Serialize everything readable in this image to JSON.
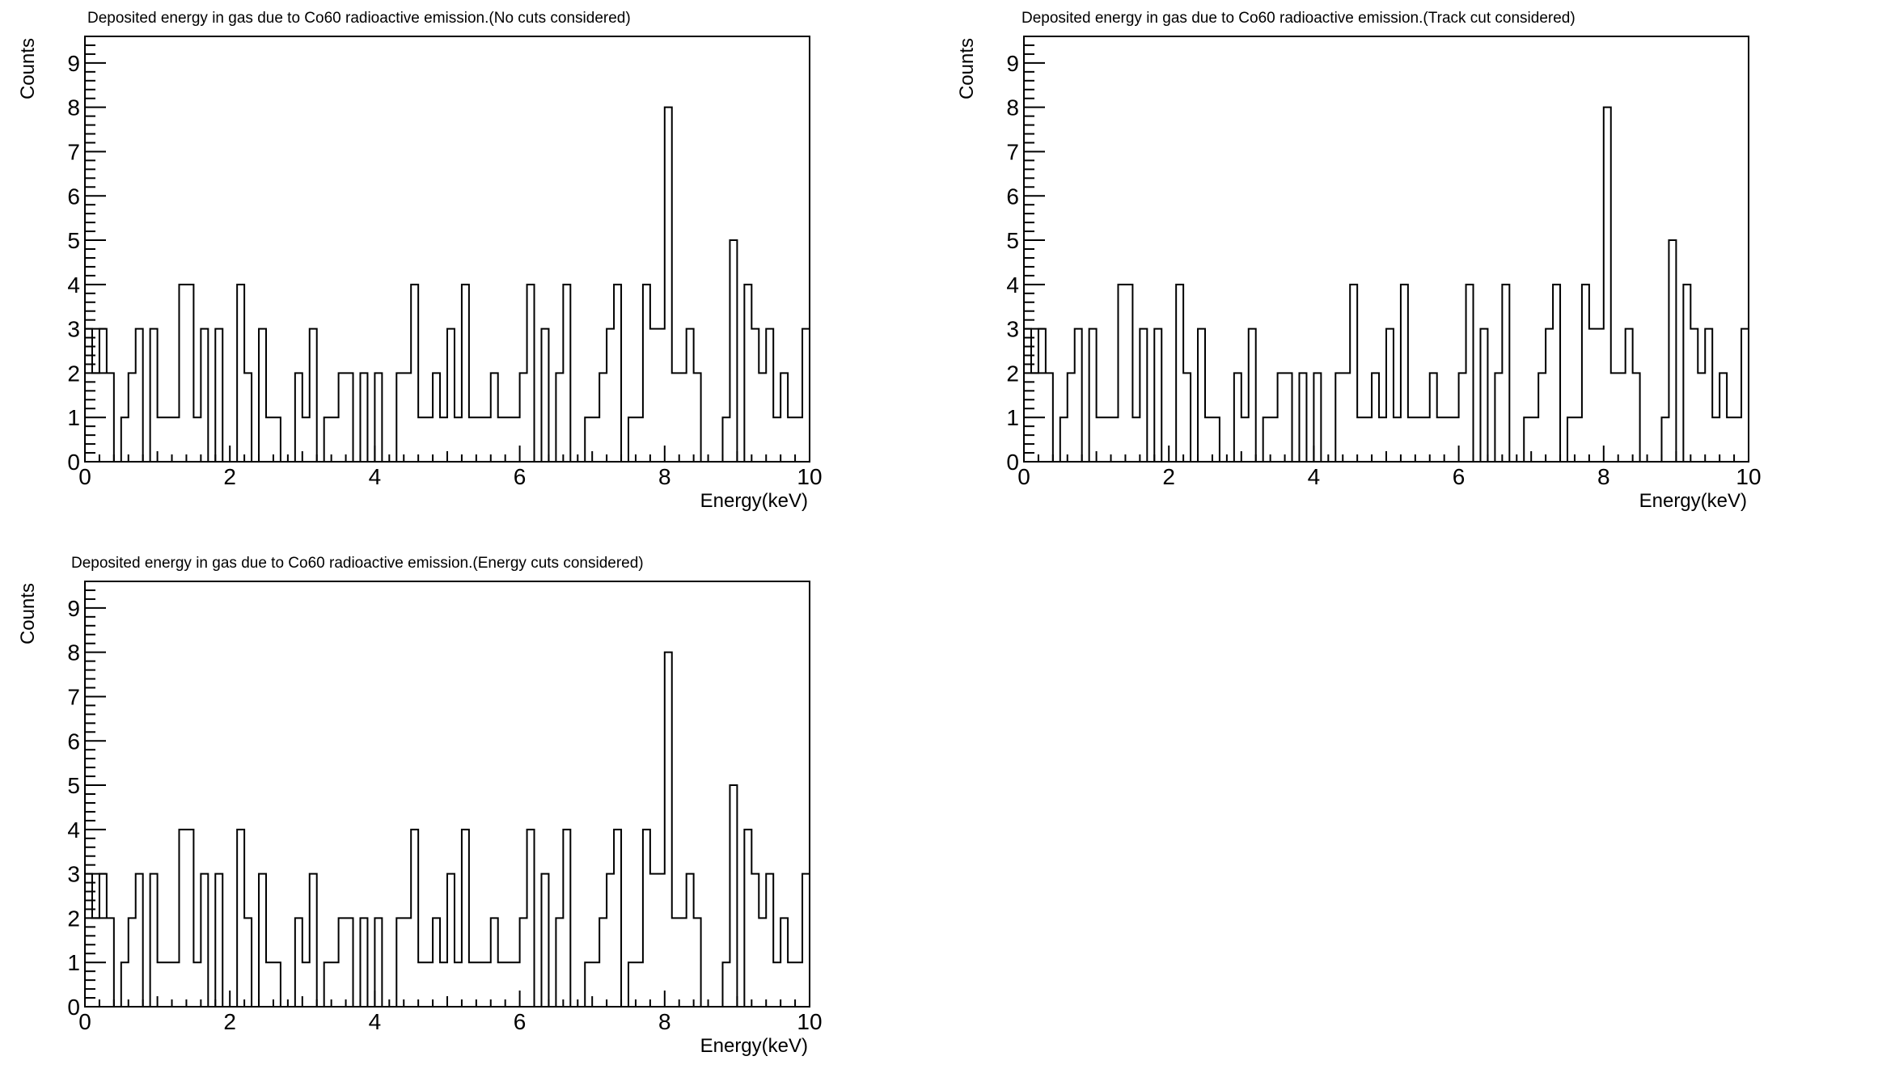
{
  "charts": [
    {
      "type": "bar",
      "title": "Deposited energy in gas due to Co60 radioactive emission.(No cuts considered)",
      "xlabel": "Energy(keV)",
      "ylabel": "Counts",
      "xlim": [
        0,
        10
      ],
      "ylim": [
        0,
        9.6
      ],
      "x_ticks": [
        "0",
        "2",
        "4",
        "6",
        "8",
        "10"
      ],
      "y_ticks": [
        "0",
        "1",
        "2",
        "3",
        "4",
        "5",
        "6",
        "7",
        "8",
        "9"
      ],
      "bin_width": 0.1,
      "values": [
        3,
        2,
        3,
        2,
        0,
        1,
        2,
        3,
        0,
        3,
        1,
        1,
        1,
        4,
        4,
        1,
        3,
        0,
        3,
        0,
        0,
        4,
        2,
        0,
        3,
        1,
        1,
        0,
        0,
        2,
        1,
        3,
        0,
        1,
        1,
        2,
        2,
        0,
        2,
        0,
        2,
        0,
        0,
        2,
        2,
        4,
        1,
        1,
        2,
        1,
        3,
        1,
        4,
        1,
        1,
        1,
        2,
        1,
        1,
        1,
        2,
        4,
        0,
        3,
        0,
        2,
        4,
        0,
        0,
        1,
        1,
        2,
        3,
        4,
        0,
        1,
        1,
        4,
        3,
        3,
        8,
        2,
        2,
        3,
        2,
        0,
        0,
        0,
        1,
        5,
        0,
        4,
        3,
        2,
        3,
        1,
        2,
        1,
        1,
        3
      ]
    },
    {
      "type": "bar",
      "title": "Deposited energy in gas due to Co60 radioactive emission.(Track cut considered)",
      "xlabel": "Energy(keV)",
      "ylabel": "Counts",
      "xlim": [
        0,
        10
      ],
      "ylim": [
        0,
        9.6
      ],
      "x_ticks": [
        "0",
        "2",
        "4",
        "6",
        "8",
        "10"
      ],
      "y_ticks": [
        "0",
        "1",
        "2",
        "3",
        "4",
        "5",
        "6",
        "7",
        "8",
        "9"
      ],
      "bin_width": 0.1,
      "values": [
        3,
        2,
        3,
        2,
        0,
        1,
        2,
        3,
        0,
        3,
        1,
        1,
        1,
        4,
        4,
        1,
        3,
        0,
        3,
        0,
        0,
        4,
        2,
        0,
        3,
        1,
        1,
        0,
        0,
        2,
        1,
        3,
        0,
        1,
        1,
        2,
        2,
        0,
        2,
        0,
        2,
        0,
        0,
        2,
        2,
        4,
        1,
        1,
        2,
        1,
        3,
        1,
        4,
        1,
        1,
        1,
        2,
        1,
        1,
        1,
        2,
        4,
        0,
        3,
        0,
        2,
        4,
        0,
        0,
        1,
        1,
        2,
        3,
        4,
        0,
        1,
        1,
        4,
        3,
        3,
        8,
        2,
        2,
        3,
        2,
        0,
        0,
        0,
        1,
        5,
        0,
        4,
        3,
        2,
        3,
        1,
        2,
        1,
        1,
        3
      ]
    },
    {
      "type": "bar",
      "title": "Deposited energy in gas due to Co60 radioactive emission.(Energy cuts considered)",
      "xlabel": "Energy(keV)",
      "ylabel": "Counts",
      "xlim": [
        0,
        10
      ],
      "ylim": [
        0,
        9.6
      ],
      "x_ticks": [
        "0",
        "2",
        "4",
        "6",
        "8",
        "10"
      ],
      "y_ticks": [
        "0",
        "1",
        "2",
        "3",
        "4",
        "5",
        "6",
        "7",
        "8",
        "9"
      ],
      "bin_width": 0.1,
      "values": [
        3,
        2,
        3,
        2,
        0,
        1,
        2,
        3,
        0,
        3,
        1,
        1,
        1,
        4,
        4,
        1,
        3,
        0,
        3,
        0,
        0,
        4,
        2,
        0,
        3,
        1,
        1,
        0,
        0,
        2,
        1,
        3,
        0,
        1,
        1,
        2,
        2,
        0,
        2,
        0,
        2,
        0,
        0,
        2,
        2,
        4,
        1,
        1,
        2,
        1,
        3,
        1,
        4,
        1,
        1,
        1,
        2,
        1,
        1,
        1,
        2,
        4,
        0,
        3,
        0,
        2,
        4,
        0,
        0,
        1,
        1,
        2,
        3,
        4,
        0,
        1,
        1,
        4,
        3,
        3,
        8,
        2,
        2,
        3,
        2,
        0,
        0,
        0,
        1,
        5,
        0,
        4,
        3,
        2,
        3,
        1,
        2,
        1,
        1,
        3
      ]
    }
  ],
  "chart_data": [
    {
      "ref": "charts.0"
    },
    {
      "ref": "charts.1"
    },
    {
      "ref": "charts.2"
    }
  ]
}
